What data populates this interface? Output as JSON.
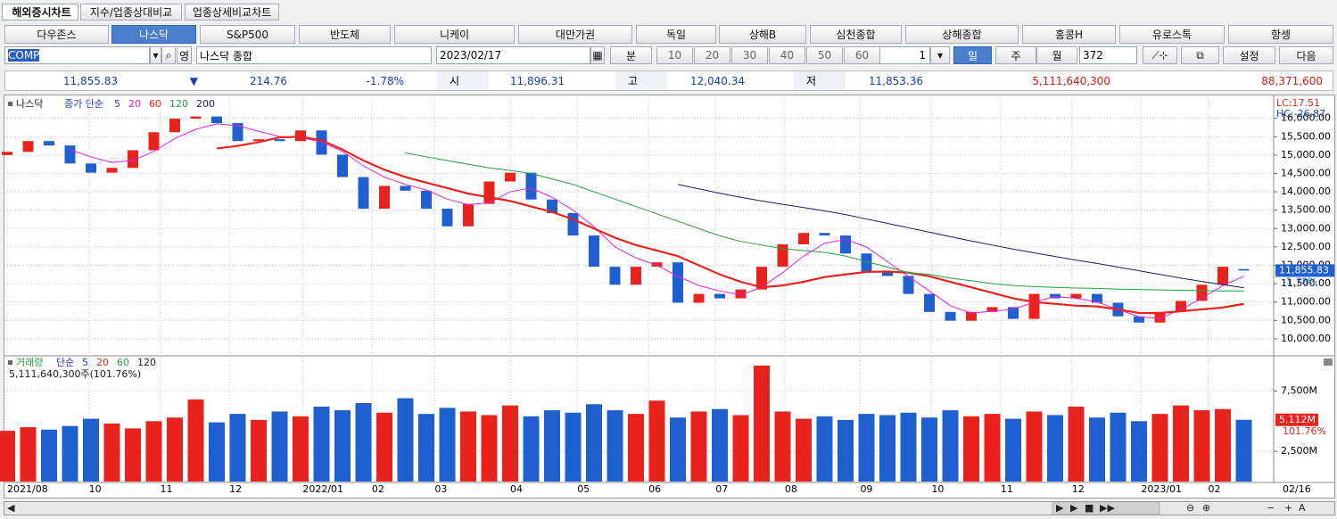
{
  "tabs": [
    "해외증시차트",
    "지수/업종상대비교",
    "업종상세비교차트"
  ],
  "market_buttons": [
    "다우존스",
    "나스닥",
    "S&P500",
    "반도체",
    "니케이",
    "대만가권",
    "독일",
    "상해B",
    "심천종합",
    "상해종합",
    "홍콩H",
    "유로스톡",
    "항셍"
  ],
  "toolbar": {
    "code": "COMP",
    "name": "나스닥 종합",
    "date": "2023/02/17",
    "interval": "분",
    "minute_options": [
      "10",
      "20",
      "30",
      "40",
      "50",
      "60"
    ],
    "spin": "1",
    "periods": [
      "일",
      "주",
      "월"
    ],
    "count": "372",
    "settings": "설정",
    "next": "다음",
    "foreign": "영"
  },
  "quote": {
    "last": "11,855.83",
    "arrow": "▼",
    "change": "214.76",
    "change_pct": "-1.78%",
    "open_label": "시",
    "open": "11,896.31",
    "high_label": "고",
    "high": "12,040.34",
    "low_label": "저",
    "low": "11,853.36",
    "volume": "5,111,640,300",
    "amount": "88,371,600"
  },
  "chart_data": [
    {
      "type": "candlestick",
      "title": "나스닥",
      "legend_title": "종가 단순",
      "up_color": "#e8231d",
      "down_color": "#1f5fd0",
      "open": [
        15000,
        15086,
        15380,
        15260,
        14770,
        14520,
        14650,
        15130,
        15620,
        15990,
        16050,
        15870,
        15380,
        15430,
        15380,
        15670,
        15010,
        14400,
        13540,
        14160,
        14030,
        13540,
        13060,
        13670,
        14280,
        14520,
        13790,
        13420,
        12810,
        11960,
        11470,
        11960,
        12080,
        10980,
        11220,
        11100,
        11340,
        11960,
        12570,
        12880,
        12810,
        12320,
        11830,
        11710,
        11220,
        10730,
        10490,
        10730,
        10860,
        10540,
        11220,
        11100,
        11220,
        10980,
        10610,
        10440,
        10730,
        11030,
        11470,
        11896.31
      ],
      "close": [
        15086,
        15380,
        15260,
        14770,
        14520,
        14650,
        15130,
        15620,
        15990,
        16050,
        15870,
        15380,
        15430,
        15380,
        15670,
        15010,
        14400,
        13540,
        14160,
        14030,
        13540,
        13060,
        13670,
        14280,
        14520,
        13790,
        13420,
        12810,
        11960,
        11470,
        11960,
        12080,
        10980,
        11220,
        11100,
        11340,
        11960,
        12570,
        12880,
        12810,
        12320,
        11830,
        11710,
        11220,
        10730,
        10490,
        10730,
        10860,
        10540,
        11220,
        11100,
        11220,
        10980,
        10610,
        10440,
        10730,
        11030,
        11470,
        11960,
        11855.83
      ],
      "series": [
        {
          "name": "5",
          "color": "#1f3fc0"
        },
        {
          "name": "20",
          "color": "#e020e0",
          "values": [
            null,
            null,
            null,
            15150,
            14950,
            14800,
            14850,
            15100,
            15450,
            15700,
            15850,
            15800,
            15650,
            15500,
            15480,
            15350,
            15100,
            14700,
            14400,
            14200,
            14050,
            13800,
            13650,
            13700,
            14000,
            14100,
            13850,
            13500,
            13050,
            12500,
            12200,
            12000,
            11700,
            11450,
            11300,
            11200,
            11400,
            11800,
            12250,
            12600,
            12700,
            12500,
            12100,
            11700,
            11300,
            10900,
            10700,
            10750,
            10800,
            11000,
            11150,
            11100,
            11000,
            10800,
            10600,
            10550,
            10800,
            11100,
            11450,
            11700
          ]
        },
        {
          "name": "60",
          "color": "#e8231d",
          "values": [
            null,
            null,
            null,
            null,
            null,
            null,
            null,
            null,
            null,
            null,
            15180,
            15250,
            15350,
            15480,
            15500,
            15400,
            15150,
            14850,
            14600,
            14400,
            14250,
            14100,
            13950,
            13850,
            13750,
            13600,
            13450,
            13250,
            13000,
            12750,
            12550,
            12400,
            12250,
            12000,
            11750,
            11550,
            11400,
            11450,
            11550,
            11680,
            11750,
            11820,
            11830,
            11800,
            11700,
            11550,
            11400,
            11250,
            11100,
            11000,
            10950,
            10900,
            10880,
            10800,
            10700,
            10700,
            10750,
            10800,
            10850,
            10950
          ]
        },
        {
          "name": "120",
          "color": "#21a040",
          "values": [
            null,
            null,
            null,
            null,
            null,
            null,
            null,
            null,
            null,
            null,
            null,
            null,
            null,
            null,
            null,
            null,
            null,
            null,
            null,
            15060,
            14950,
            14850,
            14750,
            14650,
            14580,
            14500,
            14350,
            14200,
            14000,
            13800,
            13600,
            13400,
            13200,
            13000,
            12800,
            12650,
            12550,
            12450,
            12400,
            12350,
            12250,
            12100,
            11950,
            11800,
            11750,
            11650,
            11580,
            11500,
            11450,
            11420,
            11400,
            11380,
            11370,
            11350,
            11340,
            11330,
            11320,
            11310,
            11300,
            11300
          ]
        },
        {
          "name": "200",
          "color": "#1a1a6a",
          "values": [
            null,
            null,
            null,
            null,
            null,
            null,
            null,
            null,
            null,
            null,
            null,
            null,
            null,
            null,
            null,
            null,
            null,
            null,
            null,
            null,
            null,
            null,
            null,
            null,
            null,
            null,
            null,
            null,
            null,
            null,
            null,
            null,
            14200,
            14080,
            13960,
            13850,
            13750,
            13660,
            13570,
            13480,
            13380,
            13260,
            13140,
            13020,
            12900,
            12780,
            12660,
            12550,
            12440,
            12340,
            12240,
            12140,
            12050,
            11950,
            11850,
            11750,
            11650,
            11560,
            11470,
            11390
          ]
        }
      ],
      "ylim": [
        9560,
        16550
      ],
      "yticks": [
        {
          "value": 10000,
          "label": "10,000.00"
        },
        {
          "value": 10500,
          "label": "10,500.00"
        },
        {
          "value": 11000,
          "label": "11,000.00"
        },
        {
          "value": 11500,
          "label": "11,500.00"
        },
        {
          "value": 12000,
          "label": "12,000.00"
        },
        {
          "value": 12500,
          "label": "12,500.00"
        },
        {
          "value": 13000,
          "label": "13,000.00"
        },
        {
          "value": 13500,
          "label": "13,500.00"
        },
        {
          "value": 14000,
          "label": "14,000.00"
        },
        {
          "value": 14500,
          "label": "14,500.00"
        },
        {
          "value": 15000,
          "label": "15,000.00"
        },
        {
          "value": 15500,
          "label": "15,500.00"
        },
        {
          "value": 16000,
          "label": "16,000.00"
        }
      ],
      "xticks": [
        {
          "value": 0,
          "label": "2021/08"
        },
        {
          "value": 3.9,
          "label": "10"
        },
        {
          "value": 7.3,
          "label": "11"
        },
        {
          "value": 10.6,
          "label": "12"
        },
        {
          "value": 14.1,
          "label": "2022/01"
        },
        {
          "value": 17.4,
          "label": "02"
        },
        {
          "value": 20.4,
          "label": "03"
        },
        {
          "value": 24,
          "label": "04"
        },
        {
          "value": 27.2,
          "label": "05"
        },
        {
          "value": 30.6,
          "label": "06"
        },
        {
          "value": 33.8,
          "label": "07"
        },
        {
          "value": 37.1,
          "label": "08"
        },
        {
          "value": 40.7,
          "label": "09"
        },
        {
          "value": 44.1,
          "label": "10"
        },
        {
          "value": 47.4,
          "label": "11"
        },
        {
          "value": 50.8,
          "label": "12"
        },
        {
          "value": 54.1,
          "label": "2023/01"
        },
        {
          "value": 57.3,
          "label": "02"
        }
      ],
      "x_end_label": "02/16",
      "lc": "LC:17.51",
      "hc": "HC:-26.87",
      "last_price": "11,855.83",
      "last_change": "-1.78%",
      "grid": true
    },
    {
      "type": "bar",
      "title": "거래량",
      "legend_title": "단순",
      "legend": [
        {
          "name": "5",
          "color": "#1f3fc0"
        },
        {
          "name": "20",
          "color": "#e8231d"
        },
        {
          "name": "60",
          "color": "#21a040"
        },
        {
          "name": "120",
          "color": "#222222"
        }
      ],
      "values": [
        4200,
        4500,
        4300,
        4600,
        5200,
        4800,
        4400,
        5000,
        5300,
        6800,
        4900,
        5600,
        5100,
        5800,
        5400,
        6200,
        5900,
        6500,
        5700,
        6900,
        5600,
        6100,
        5800,
        5500,
        6300,
        5400,
        5900,
        5700,
        6400,
        5900,
        5600,
        6700,
        5300,
        5800,
        6000,
        5500,
        9600,
        5800,
        5200,
        5400,
        5100,
        5600,
        5500,
        5700,
        5300,
        5900,
        5400,
        5600,
        5200,
        5800,
        5500,
        6200,
        5300,
        5700,
        5000,
        5600,
        6300,
        5900,
        6000,
        5112
      ],
      "ylim": [
        0,
        10336
      ],
      "yticks": [
        {
          "value": 2500,
          "label": "2,500M"
        },
        {
          "value": 7500,
          "label": "7,500M"
        }
      ],
      "summary": "5,111,640,300주(101.76%)",
      "last_label": "5,112M",
      "last_pct": "101.76%",
      "grid": true
    }
  ]
}
